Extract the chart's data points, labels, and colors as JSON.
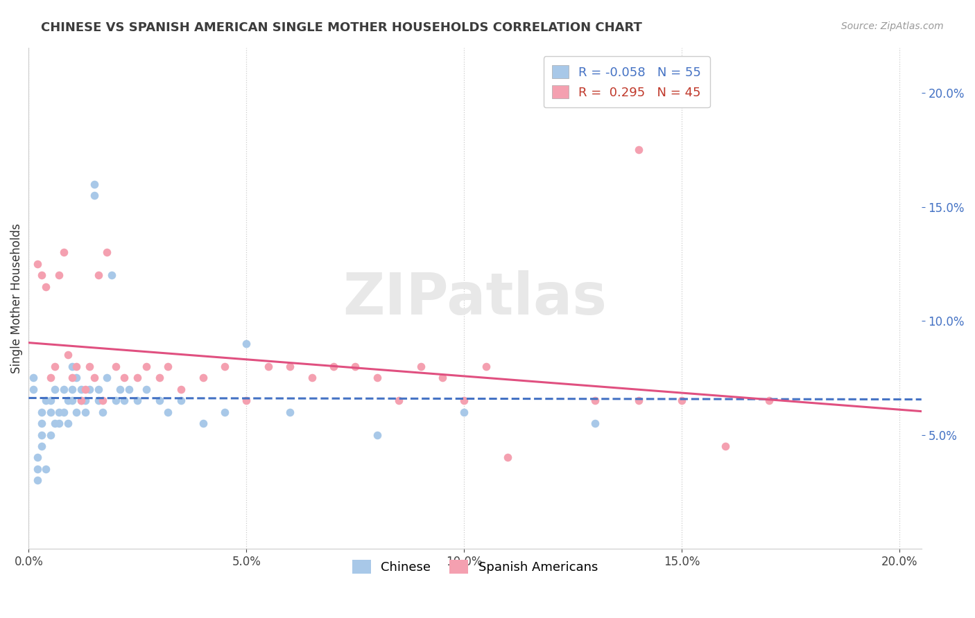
{
  "title": "CHINESE VS SPANISH AMERICAN SINGLE MOTHER HOUSEHOLDS CORRELATION CHART",
  "source": "Source: ZipAtlas.com",
  "ylabel": "Single Mother Households",
  "xlim": [
    0.0,
    0.205
  ],
  "ylim": [
    0.0,
    0.22
  ],
  "watermark": "ZIPatlas",
  "chinese_color": "#a8c8e8",
  "spanish_color": "#f4a0b0",
  "trendline_chinese_color": "#4472c4",
  "trendline_spanish_color": "#e05080",
  "right_tick_color": "#4472c4",
  "chinese_R": -0.058,
  "spanish_R": 0.295,
  "chinese_N": 55,
  "spanish_N": 45,
  "legend_r1_color": "#4472c4",
  "legend_r2_color": "#c0392b",
  "title_fontsize": 13,
  "tick_fontsize": 12,
  "legend_fontsize": 13,
  "chinese_x": [
    0.001,
    0.001,
    0.002,
    0.002,
    0.002,
    0.003,
    0.003,
    0.003,
    0.003,
    0.004,
    0.004,
    0.005,
    0.005,
    0.005,
    0.006,
    0.006,
    0.007,
    0.007,
    0.008,
    0.008,
    0.009,
    0.009,
    0.01,
    0.01,
    0.01,
    0.011,
    0.011,
    0.012,
    0.012,
    0.013,
    0.013,
    0.014,
    0.015,
    0.015,
    0.016,
    0.016,
    0.017,
    0.018,
    0.019,
    0.02,
    0.021,
    0.022,
    0.023,
    0.025,
    0.027,
    0.03,
    0.032,
    0.035,
    0.04,
    0.045,
    0.05,
    0.06,
    0.08,
    0.1,
    0.13
  ],
  "chinese_y": [
    0.07,
    0.075,
    0.04,
    0.03,
    0.035,
    0.055,
    0.045,
    0.05,
    0.06,
    0.035,
    0.065,
    0.06,
    0.065,
    0.05,
    0.055,
    0.07,
    0.06,
    0.055,
    0.06,
    0.07,
    0.055,
    0.065,
    0.065,
    0.07,
    0.08,
    0.075,
    0.06,
    0.065,
    0.07,
    0.06,
    0.065,
    0.07,
    0.155,
    0.16,
    0.065,
    0.07,
    0.06,
    0.075,
    0.12,
    0.065,
    0.07,
    0.065,
    0.07,
    0.065,
    0.07,
    0.065,
    0.06,
    0.065,
    0.055,
    0.06,
    0.09,
    0.06,
    0.05,
    0.06,
    0.055
  ],
  "spanish_x": [
    0.002,
    0.003,
    0.004,
    0.005,
    0.006,
    0.007,
    0.008,
    0.009,
    0.01,
    0.011,
    0.012,
    0.013,
    0.014,
    0.015,
    0.016,
    0.017,
    0.018,
    0.02,
    0.022,
    0.025,
    0.027,
    0.03,
    0.032,
    0.035,
    0.04,
    0.045,
    0.05,
    0.055,
    0.06,
    0.065,
    0.07,
    0.075,
    0.08,
    0.085,
    0.09,
    0.095,
    0.1,
    0.105,
    0.11,
    0.13,
    0.14,
    0.15,
    0.16,
    0.17,
    0.14
  ],
  "spanish_y": [
    0.125,
    0.12,
    0.115,
    0.075,
    0.08,
    0.12,
    0.13,
    0.085,
    0.075,
    0.08,
    0.065,
    0.07,
    0.08,
    0.075,
    0.12,
    0.065,
    0.13,
    0.08,
    0.075,
    0.075,
    0.08,
    0.075,
    0.08,
    0.07,
    0.075,
    0.08,
    0.065,
    0.08,
    0.08,
    0.075,
    0.08,
    0.08,
    0.075,
    0.065,
    0.08,
    0.075,
    0.065,
    0.08,
    0.04,
    0.065,
    0.065,
    0.065,
    0.045,
    0.065,
    0.175
  ]
}
